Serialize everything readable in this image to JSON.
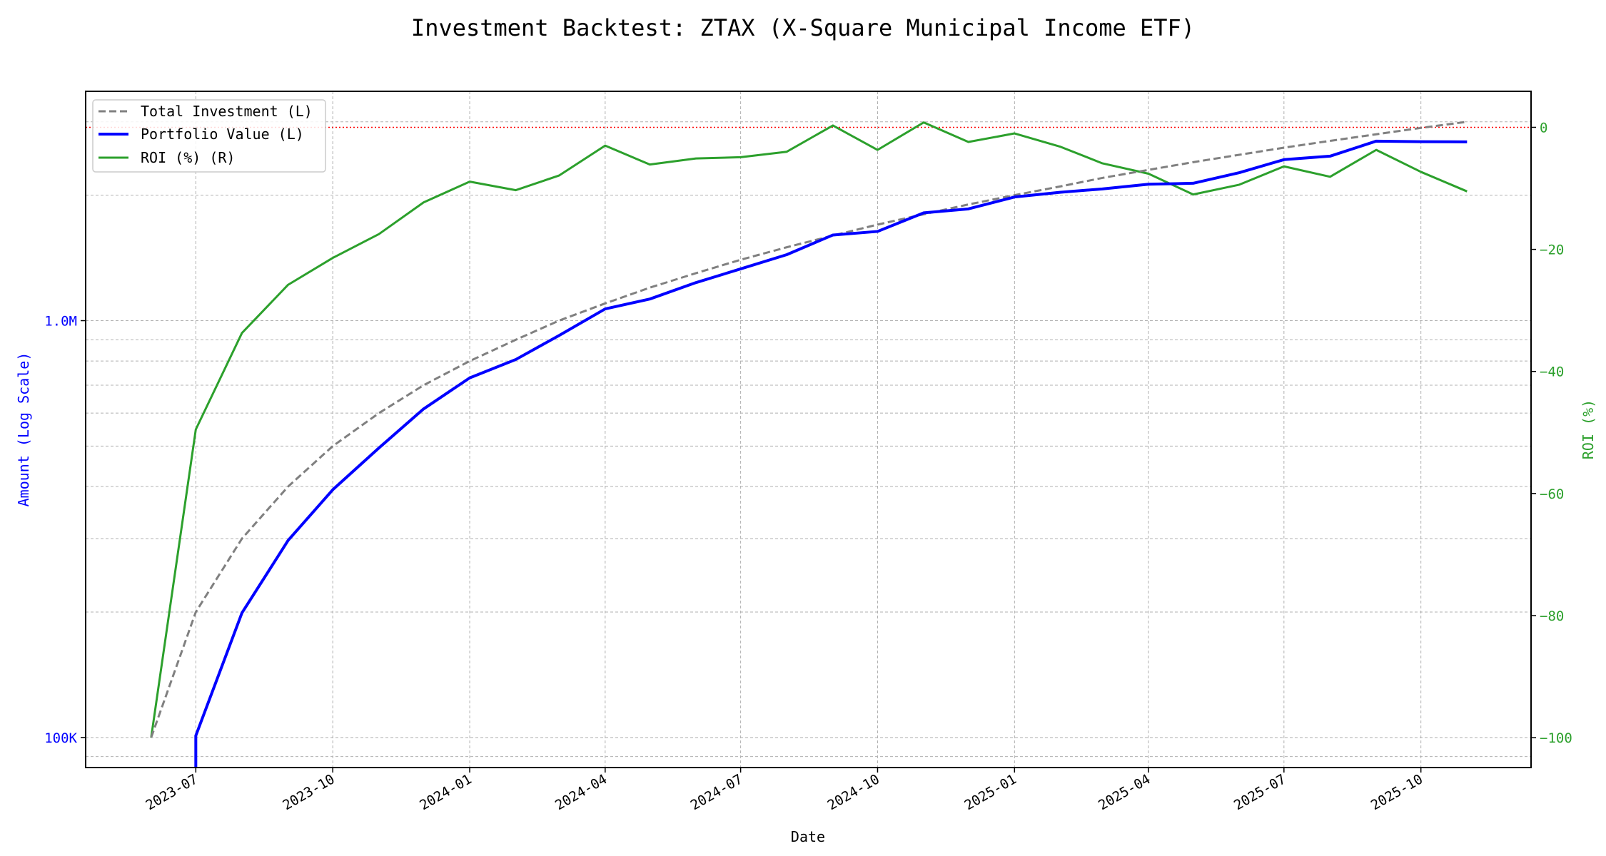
{
  "chart_data": {
    "type": "line",
    "title": "Investment Backtest: ZTAX (X-Square Municipal Income ETF)",
    "xlabel": "Date",
    "ylabel_left": "Amount (Log Scale)",
    "ylabel_right": "ROI (%)",
    "left_scale": "log",
    "grid": true,
    "legend_position": "top-left",
    "xlim": [
      "2023-04-18",
      "2025-12-14"
    ],
    "ylim_left": [
      84700,
      3550000
    ],
    "ylim_right": [
      -104.9,
      5.9
    ],
    "x_ticks": [
      "2023-07",
      "2023-10",
      "2024-01",
      "2024-04",
      "2024-07",
      "2024-10",
      "2025-01",
      "2025-04",
      "2025-07",
      "2025-10"
    ],
    "y_left_ticks": [
      {
        "value": 100000,
        "label": "100K"
      },
      {
        "value": 1000000,
        "label": "1.0M"
      }
    ],
    "y_right_ticks": [
      0,
      -20,
      -40,
      -60,
      -80,
      -100
    ],
    "reference_line": {
      "axis": "right",
      "value": 0,
      "color": "#ff0000",
      "style": "dotted"
    },
    "x": [
      "2023-06-01",
      "2023-07-01",
      "2023-08-01",
      "2023-09-01",
      "2023-10-01",
      "2023-11-01",
      "2023-12-01",
      "2024-01-01",
      "2024-02-01",
      "2024-03-01",
      "2024-04-01",
      "2024-05-01",
      "2024-06-01",
      "2024-07-01",
      "2024-08-01",
      "2024-09-01",
      "2024-10-01",
      "2024-11-01",
      "2024-12-01",
      "2025-01-01",
      "2025-02-01",
      "2025-03-01",
      "2025-04-01",
      "2025-05-01",
      "2025-06-01",
      "2025-07-01",
      "2025-08-01",
      "2025-09-01",
      "2025-10-01",
      "2025-11-01"
    ],
    "series": [
      {
        "name": "Total Investment (L)",
        "axis": "left",
        "color": "#808080",
        "style": "dashed",
        "values": [
          100000,
          200000,
          300000,
          400000,
          500000,
          600000,
          700000,
          800000,
          900000,
          1000000,
          1100000,
          1200000,
          1300000,
          1400000,
          1500000,
          1600000,
          1700000,
          1800000,
          1900000,
          2000000,
          2100000,
          2200000,
          2300000,
          2400000,
          2500000,
          2600000,
          2700000,
          2800000,
          2900000,
          3000000
        ]
      },
      {
        "name": "Portfolio Value (L)",
        "axis": "left",
        "color": "#0000ff",
        "style": "solid",
        "values": [
          0,
          101000,
          199000,
          297000,
          393000,
          495000,
          614000,
          729000,
          807000,
          921000,
          1067000,
          1127000,
          1234000,
          1331000,
          1440000,
          1605000,
          1637000,
          1814000,
          1854000,
          1980000,
          2033000,
          2070000,
          2125000,
          2136000,
          2265000,
          2434000,
          2481000,
          2696000,
          2688000,
          2685000
        ]
      },
      {
        "name": "ROI (%) (R)",
        "axis": "right",
        "color": "#2ca02c",
        "style": "solid",
        "values": [
          -100,
          -49.5,
          -33.7,
          -25.8,
          -21.4,
          -17.5,
          -12.3,
          -8.9,
          -10.3,
          -7.9,
          -3.0,
          -6.1,
          -5.1,
          -4.9,
          -4.0,
          0.3,
          -3.7,
          0.8,
          -2.4,
          -1.0,
          -3.2,
          -5.9,
          -7.6,
          -11.0,
          -9.4,
          -6.4,
          -8.1,
          -3.7,
          -7.3,
          -10.5
        ]
      }
    ]
  }
}
